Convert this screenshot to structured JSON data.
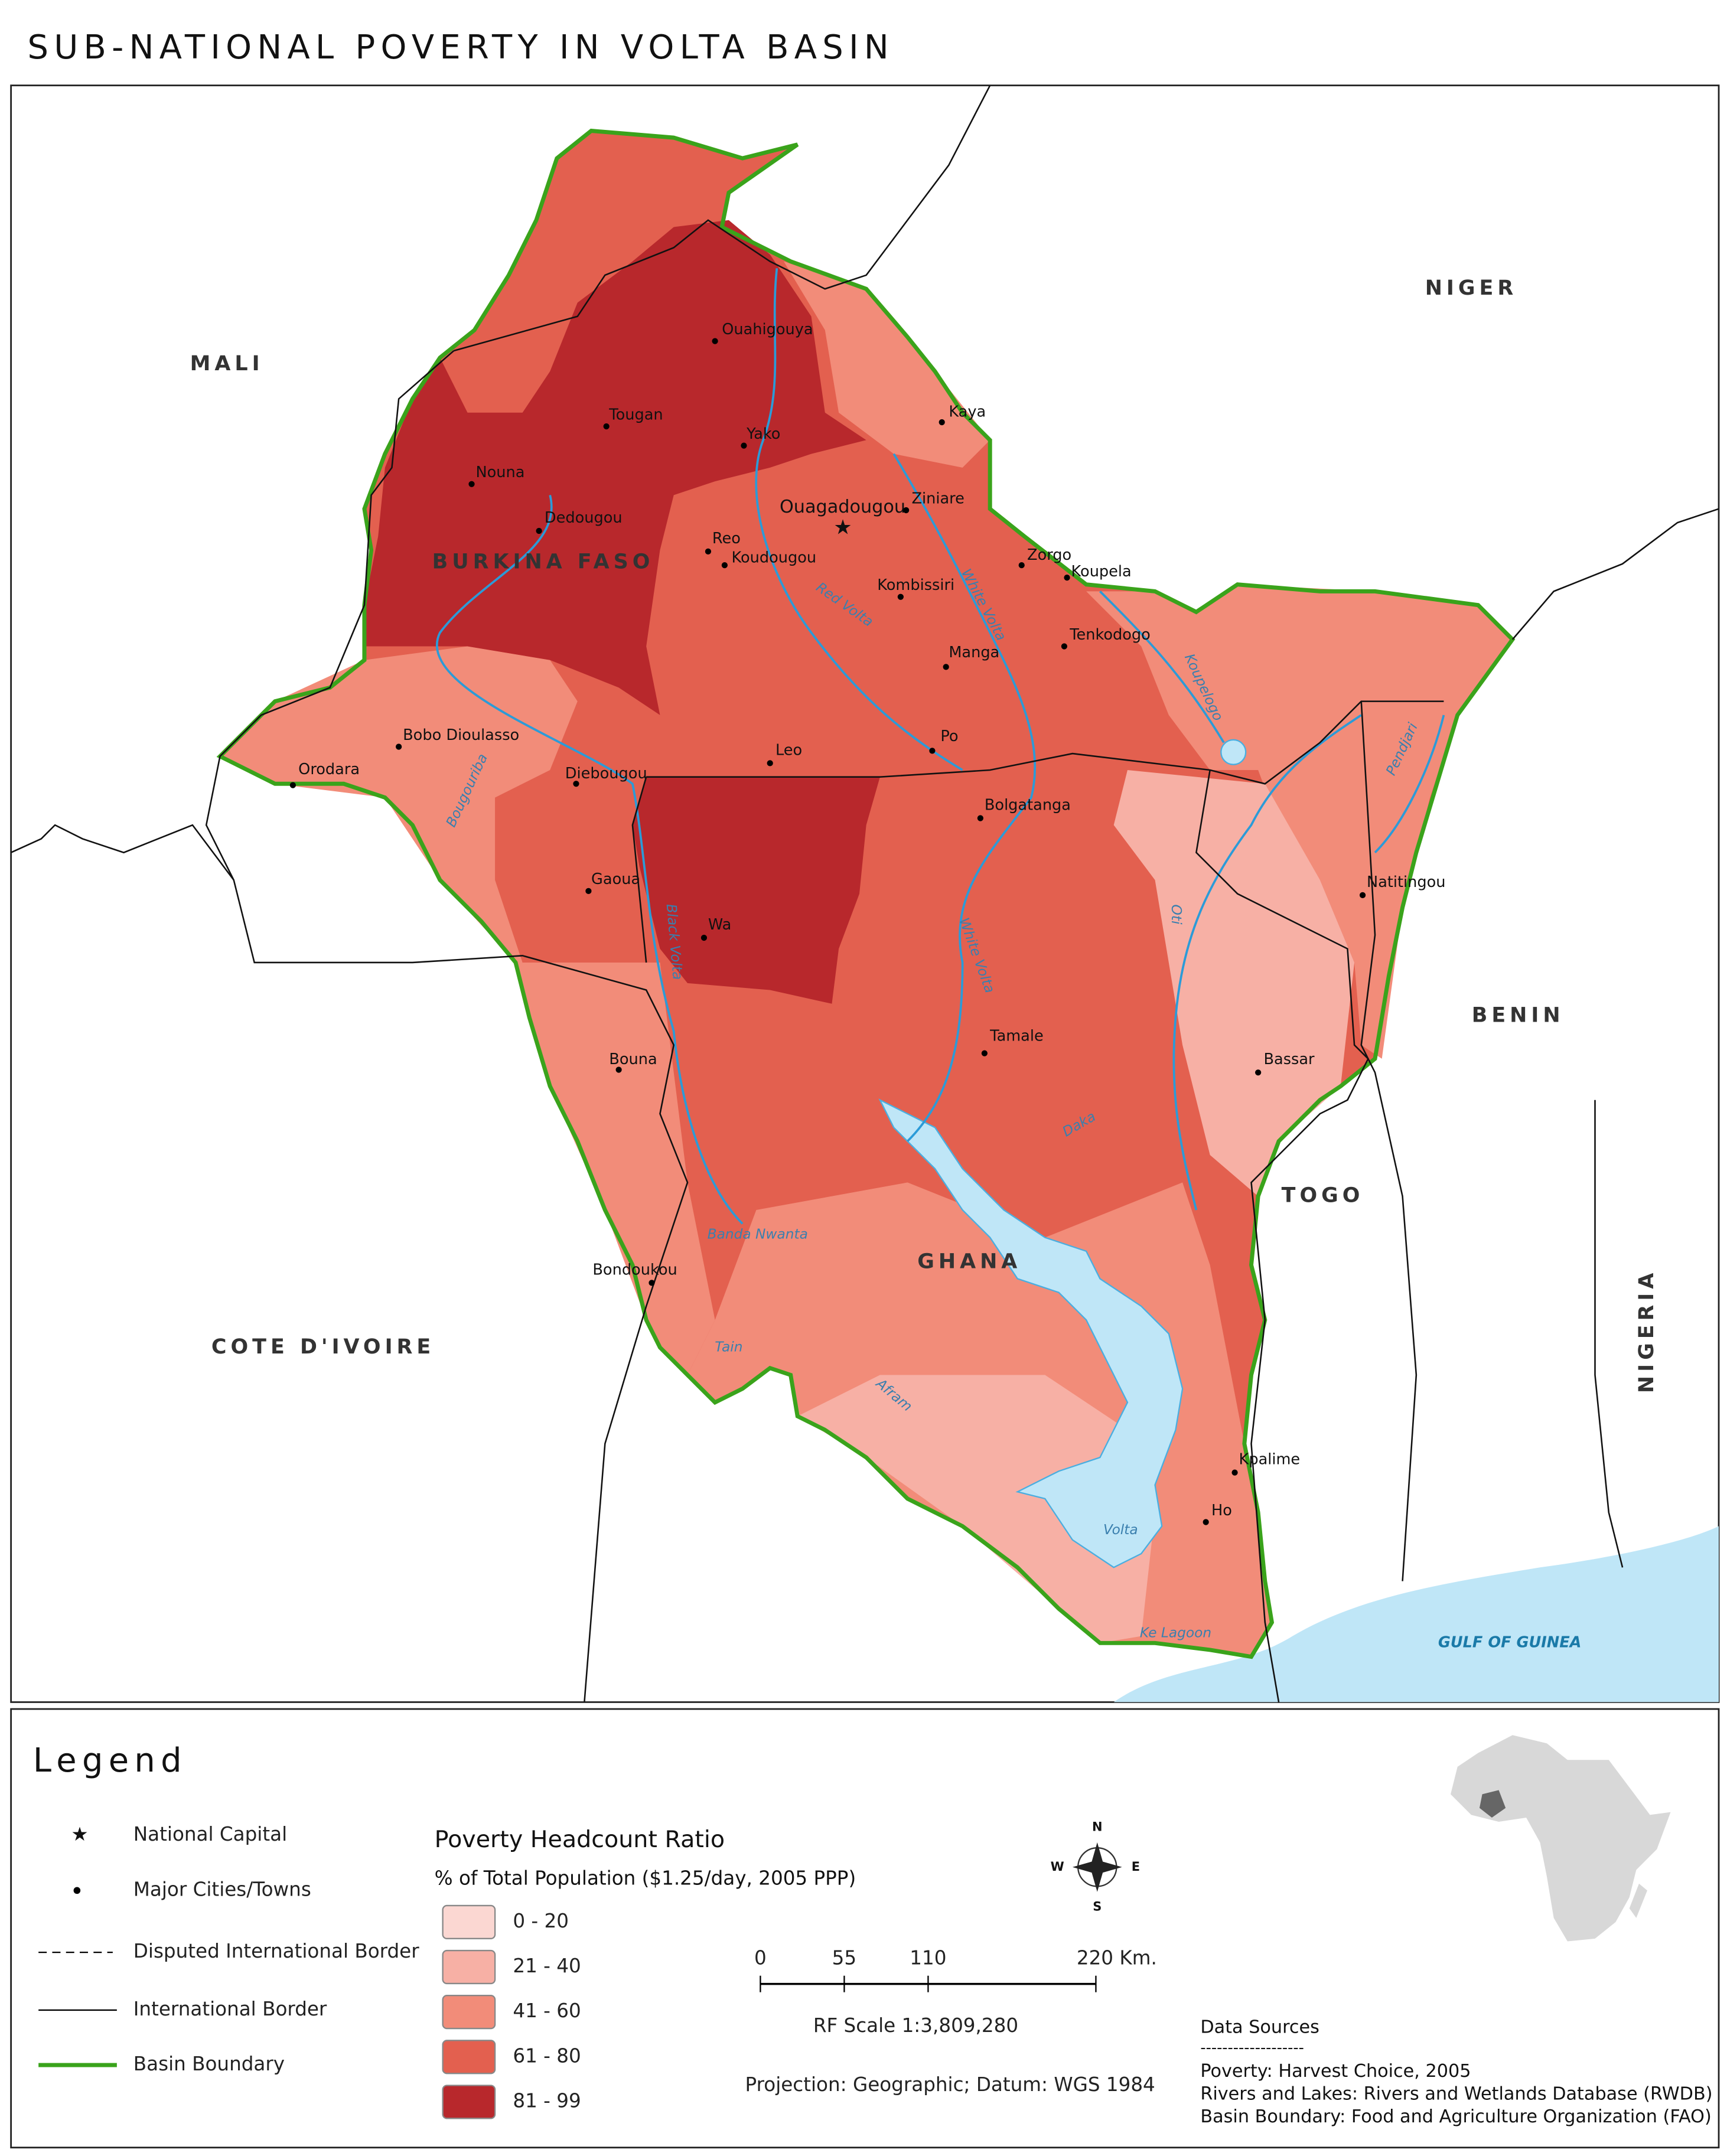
{
  "title": "SUB-NATIONAL POVERTY IN VOLTA BASIN",
  "countries": [
    "MALI",
    "NIGER",
    "BURKINA FASO",
    "BENIN",
    "TOGO",
    "GHANA",
    "COTE D'IVOIRE",
    "NIGERIA"
  ],
  "capital": "Ouagadougou",
  "cities": [
    "Ouahigouya",
    "Kaya",
    "Tougan",
    "Yako",
    "Nouna",
    "Ziniare",
    "Dedougou",
    "Reo",
    "Koudougou",
    "Zorgo",
    "Koupela",
    "Kombissiri",
    "Tenkodogo",
    "Manga",
    "Bobo Dioulasso",
    "Orodara",
    "Po",
    "Leo",
    "Diebougou",
    "Bolgatanga",
    "Natitingou",
    "Gaoua",
    "Wa",
    "Tamale",
    "Bassar",
    "Bouna",
    "Bondoukou",
    "Kpalime",
    "Ho"
  ],
  "rivers": [
    "Red Volta",
    "White Volta",
    "Koupelogo",
    "Pendjari",
    "Oti",
    "Black Volta",
    "Bougouriba",
    "White Volta",
    "Daka",
    "Banda Nwanta",
    "Tain",
    "Afram"
  ],
  "water_bodies": [
    "Volta",
    "Ke Lagoon",
    "GULF OF GUINEA"
  ],
  "legend": {
    "title": "Legend",
    "items": [
      "National Capital",
      "Major Cities/Towns",
      "Disputed International Border",
      "International Border",
      "Basin Boundary"
    ]
  },
  "poverty": {
    "title": "Poverty Headcount Ratio",
    "subtitle": "% of Total Population ($1.25/day, 2005 PPP)",
    "classes": [
      {
        "label": "0 - 20",
        "color": "#fbd7d2"
      },
      {
        "label": "21 - 40",
        "color": "#f7b0a5"
      },
      {
        "label": "41 - 60",
        "color": "#f28c79"
      },
      {
        "label": "61 - 80",
        "color": "#e3604f"
      },
      {
        "label": "81 - 99",
        "color": "#b8282c"
      }
    ]
  },
  "scale_bar": {
    "ticks": [
      0,
      55,
      110,
      {
        "value": 220,
        "label": "220 Km."
      }
    ],
    "rf": "RF Scale 1:3,809,280"
  },
  "projection": "Projection: Geographic; Datum: WGS 1984",
  "compass": [
    "N",
    "E",
    "S",
    "W"
  ],
  "data_sources": {
    "title": "Data Sources",
    "rule": "-------------------",
    "lines": [
      "Poverty: Harvest Choice, 2005",
      "Rivers and Lakes: Rivers and Wetlands Database (RWDB)",
      "Basin Boundary: Food and Agriculture Organization (FAO)"
    ]
  }
}
